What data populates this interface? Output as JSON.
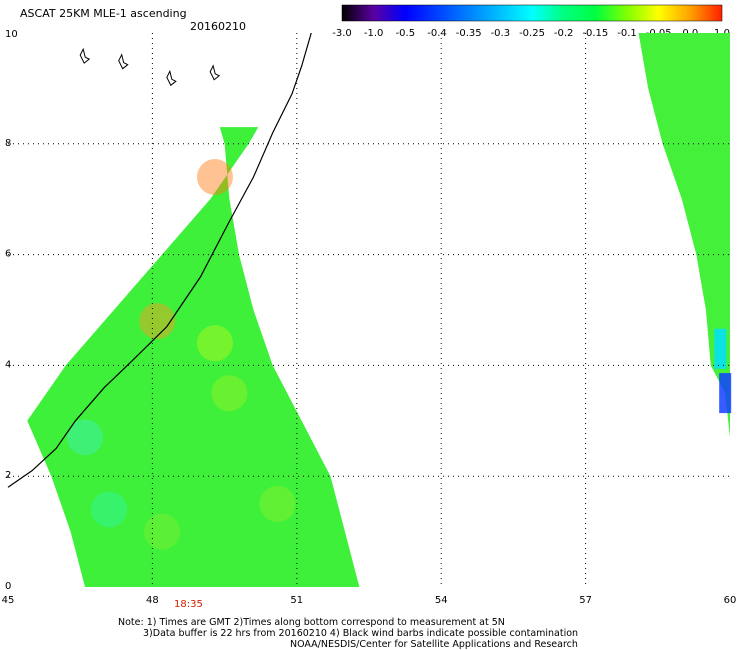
{
  "header": {
    "title": "ASCAT 25KM MLE-1 ascending",
    "date": "20160210"
  },
  "colorbar": {
    "labels": [
      "-3.0",
      "-1.0",
      "-0.5",
      "-0.4",
      "-0.35",
      "-0.3",
      "-0.25",
      "-0.2",
      "-0.15",
      "-0.1",
      "-0.05",
      "0.0",
      "1.0"
    ],
    "colors": [
      "#000000",
      "#5a00a0",
      "#0000ff",
      "#0040ff",
      "#0080ff",
      "#00c0ff",
      "#00ffff",
      "#00ff80",
      "#00ff40",
      "#80ff00",
      "#ffff00",
      "#ffa000",
      "#ff2000"
    ]
  },
  "axes": {
    "x_ticks": [
      "45",
      "48",
      "51",
      "54",
      "57",
      "60"
    ],
    "y_ticks": [
      "0",
      "2",
      "4",
      "6",
      "8",
      "10"
    ],
    "xlim": [
      45,
      60
    ],
    "ylim": [
      0,
      10
    ]
  },
  "time_label": "18:35",
  "notes": [
    "Note: 1) Times are GMT 2)Times along bottom correspond to measurement at 5N",
    "3)Data buffer is 22 hrs from 20160210 4) Black wind barbs indicate possible contamination",
    "NOAA/NESDIS/Center for Satellite Applications and Research"
  ],
  "swaths": {
    "west": {
      "lat": [
        0,
        1,
        2,
        3,
        4,
        5,
        6,
        7,
        8,
        8.3
      ],
      "lon_left": [
        46.6,
        46.3,
        45.9,
        45.4,
        46.2,
        47.2,
        48.2,
        49.2,
        50.0,
        50.2
      ],
      "lon_right": [
        52.3,
        52.0,
        51.7,
        51.1,
        50.5,
        50.1,
        49.8,
        49.6,
        49.5,
        49.4
      ],
      "fill": "#3ff03a"
    },
    "east": {
      "lat": [
        2.7,
        3.5,
        4.0,
        5.0,
        6.0,
        7.0,
        8.0,
        9.0,
        10.0
      ],
      "lon_left": [
        60.0,
        59.9,
        59.6,
        59.5,
        59.3,
        59.0,
        58.6,
        58.3,
        58.1
      ],
      "lon_right": [
        60.0,
        60.0,
        60.0,
        60.0,
        60.0,
        60.0,
        60.0,
        60.0,
        60.0
      ],
      "fill": "#45f03a"
    }
  },
  "coastline": {
    "lon": [
      45.0,
      45.5,
      46.0,
      46.4,
      47.0,
      47.6,
      48.3,
      49.0,
      49.6,
      50.1,
      50.5,
      50.9,
      51.1,
      51.2,
      51.3
    ],
    "lat": [
      1.8,
      2.1,
      2.5,
      3.0,
      3.6,
      4.1,
      4.7,
      5.6,
      6.6,
      7.4,
      8.2,
      8.9,
      9.4,
      9.7,
      10.0
    ]
  }
}
